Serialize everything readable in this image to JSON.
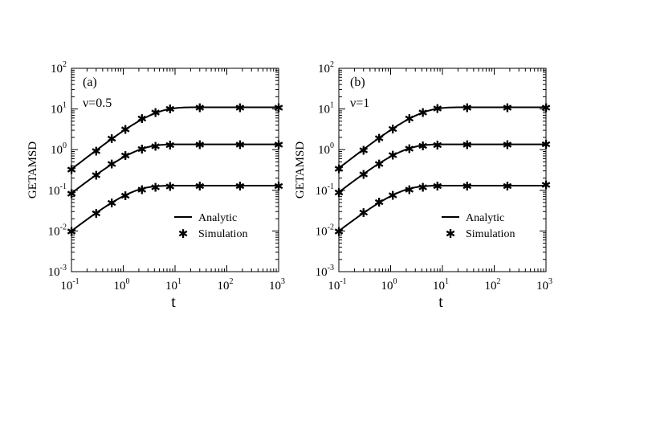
{
  "chart_data": [
    {
      "type": "line",
      "panel_label": "(a)",
      "annotation": "ν=0.5",
      "xlabel": "t",
      "ylabel": "GETAMSD",
      "xscale": "log",
      "yscale": "log",
      "xlim": [
        0.1,
        1000
      ],
      "ylim": [
        0.001,
        100
      ],
      "x_ticks": [
        {
          "base": "10",
          "exp": "-1"
        },
        {
          "base": "10",
          "exp": "0"
        },
        {
          "base": "10",
          "exp": "1"
        },
        {
          "base": "10",
          "exp": "2"
        },
        {
          "base": "10",
          "exp": "3"
        }
      ],
      "y_ticks": [
        {
          "base": "10",
          "exp": "-3"
        },
        {
          "base": "10",
          "exp": "-2"
        },
        {
          "base": "10",
          "exp": "-1"
        },
        {
          "base": "10",
          "exp": "0"
        },
        {
          "base": "10",
          "exp": "1"
        },
        {
          "base": "10",
          "exp": "2"
        }
      ],
      "grid": false,
      "legend": {
        "position": "lower-right",
        "entries": [
          "Analytic",
          "Simulation"
        ]
      },
      "series": [
        {
          "plateau": 11,
          "points": [
            [
              0.1,
              0.33
            ],
            [
              0.3,
              0.95
            ],
            [
              0.6,
              1.9
            ],
            [
              1.1,
              3.2
            ],
            [
              2.3,
              5.9
            ],
            [
              4.2,
              8.3
            ],
            [
              8,
              10.3
            ],
            [
              30,
              11
            ],
            [
              180,
              11
            ],
            [
              1000,
              11
            ]
          ]
        },
        {
          "plateau": 1.35,
          "points": [
            [
              0.1,
              0.085
            ],
            [
              0.3,
              0.24
            ],
            [
              0.6,
              0.45
            ],
            [
              1.1,
              0.73
            ],
            [
              2.3,
              1.05
            ],
            [
              4.2,
              1.25
            ],
            [
              8,
              1.32
            ],
            [
              30,
              1.35
            ],
            [
              180,
              1.35
            ],
            [
              1000,
              1.35
            ]
          ]
        },
        {
          "plateau": 0.13,
          "points": [
            [
              0.1,
              0.01
            ],
            [
              0.3,
              0.028
            ],
            [
              0.6,
              0.05
            ],
            [
              1.1,
              0.075
            ],
            [
              2.3,
              0.105
            ],
            [
              4.2,
              0.122
            ],
            [
              8,
              0.128
            ],
            [
              30,
              0.13
            ],
            [
              180,
              0.13
            ],
            [
              1000,
              0.13
            ]
          ]
        }
      ]
    },
    {
      "type": "line",
      "panel_label": "(b)",
      "annotation": "ν=1",
      "xlabel": "t",
      "ylabel": "GETAMSD",
      "xscale": "log",
      "yscale": "log",
      "xlim": [
        0.1,
        1000
      ],
      "ylim": [
        0.001,
        100
      ],
      "x_ticks": [
        {
          "base": "10",
          "exp": "-1"
        },
        {
          "base": "10",
          "exp": "0"
        },
        {
          "base": "10",
          "exp": "1"
        },
        {
          "base": "10",
          "exp": "2"
        },
        {
          "base": "10",
          "exp": "3"
        }
      ],
      "y_ticks": [
        {
          "base": "10",
          "exp": "-3"
        },
        {
          "base": "10",
          "exp": "-2"
        },
        {
          "base": "10",
          "exp": "-1"
        },
        {
          "base": "10",
          "exp": "0"
        },
        {
          "base": "10",
          "exp": "1"
        },
        {
          "base": "10",
          "exp": "2"
        }
      ],
      "grid": false,
      "legend": {
        "position": "lower-right",
        "entries": [
          "Analytic",
          "Simulation"
        ]
      },
      "series": [
        {
          "plateau": 11,
          "points": [
            [
              0.1,
              0.35
            ],
            [
              0.3,
              0.98
            ],
            [
              0.6,
              1.95
            ],
            [
              1.1,
              3.3
            ],
            [
              2.3,
              6.0
            ],
            [
              4.2,
              8.4
            ],
            [
              8,
              10.4
            ],
            [
              30,
              11
            ],
            [
              180,
              11
            ],
            [
              1000,
              11
            ]
          ]
        },
        {
          "plateau": 1.35,
          "points": [
            [
              0.1,
              0.09
            ],
            [
              0.3,
              0.25
            ],
            [
              0.6,
              0.46
            ],
            [
              1.1,
              0.75
            ],
            [
              2.3,
              1.07
            ],
            [
              4.2,
              1.26
            ],
            [
              8,
              1.33
            ],
            [
              30,
              1.35
            ],
            [
              180,
              1.35
            ],
            [
              1000,
              1.38
            ]
          ]
        },
        {
          "plateau": 0.13,
          "points": [
            [
              0.1,
              0.01
            ],
            [
              0.3,
              0.029
            ],
            [
              0.6,
              0.052
            ],
            [
              1.1,
              0.077
            ],
            [
              2.3,
              0.107
            ],
            [
              4.2,
              0.123
            ],
            [
              8,
              0.129
            ],
            [
              30,
              0.13
            ],
            [
              180,
              0.13
            ],
            [
              1000,
              0.14
            ]
          ]
        }
      ]
    }
  ]
}
